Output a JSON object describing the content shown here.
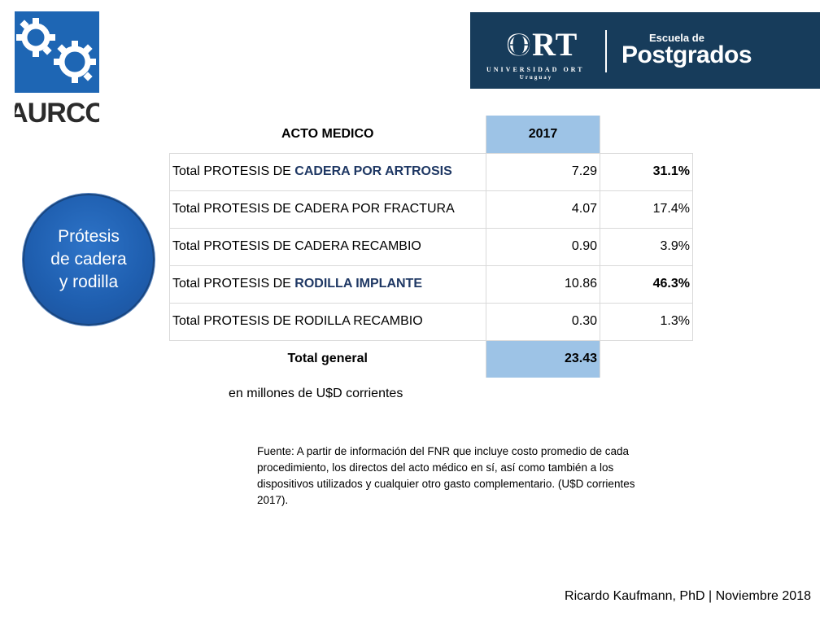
{
  "logos": {
    "left_brand": "AURCO",
    "right_brand_main": "ORT",
    "right_brand_sub": "UNIVERSIDAD ORT",
    "right_brand_country": "Uruguay",
    "right_school_pre": "Escuela de",
    "right_school_main": "Postgrados"
  },
  "circle": {
    "lines": [
      "Prótesis",
      "de cadera",
      "y rodilla"
    ]
  },
  "table": {
    "header": {
      "label": "ACTO MEDICO",
      "year": "2017"
    },
    "rows": [
      {
        "prefix": "Total PROTESIS DE ",
        "highlight": "CADERA POR ARTROSIS",
        "value": "7.29",
        "pct": "31.1%"
      },
      {
        "prefix": "Total PROTESIS DE CADERA POR FRACTURA",
        "highlight": "",
        "value": "4.07",
        "pct": "17.4%"
      },
      {
        "prefix": "Total PROTESIS DE CADERA RECAMBIO",
        "highlight": "",
        "value": "0.90",
        "pct": "3.9%"
      },
      {
        "prefix": "Total PROTESIS DE ",
        "highlight": "RODILLA IMPLANTE",
        "value": "10.86",
        "pct": "46.3%"
      },
      {
        "prefix": "Total PROTESIS DE RODILLA RECAMBIO",
        "highlight": "",
        "value": "0.30",
        "pct": "1.3%"
      }
    ],
    "total": {
      "label": "Total general",
      "value": "23.43"
    }
  },
  "units_note": "en millones de U$D corrientes",
  "source_note": "Fuente: A partir de información del FNR que incluye costo promedio de cada procedimiento, los directos del acto médico en sí, así como también a los dispositivos utilizados y cualquier otro gasto complementario. (U$D corrientes 2017).",
  "footer": "Ricardo Kaufmann, PhD   |   Noviembre 2018",
  "colors": {
    "banner": "#173c5b",
    "circle": "#2e74c8",
    "cell_highlight": "#9dc3e6",
    "text_highlight": "#1f3864"
  }
}
